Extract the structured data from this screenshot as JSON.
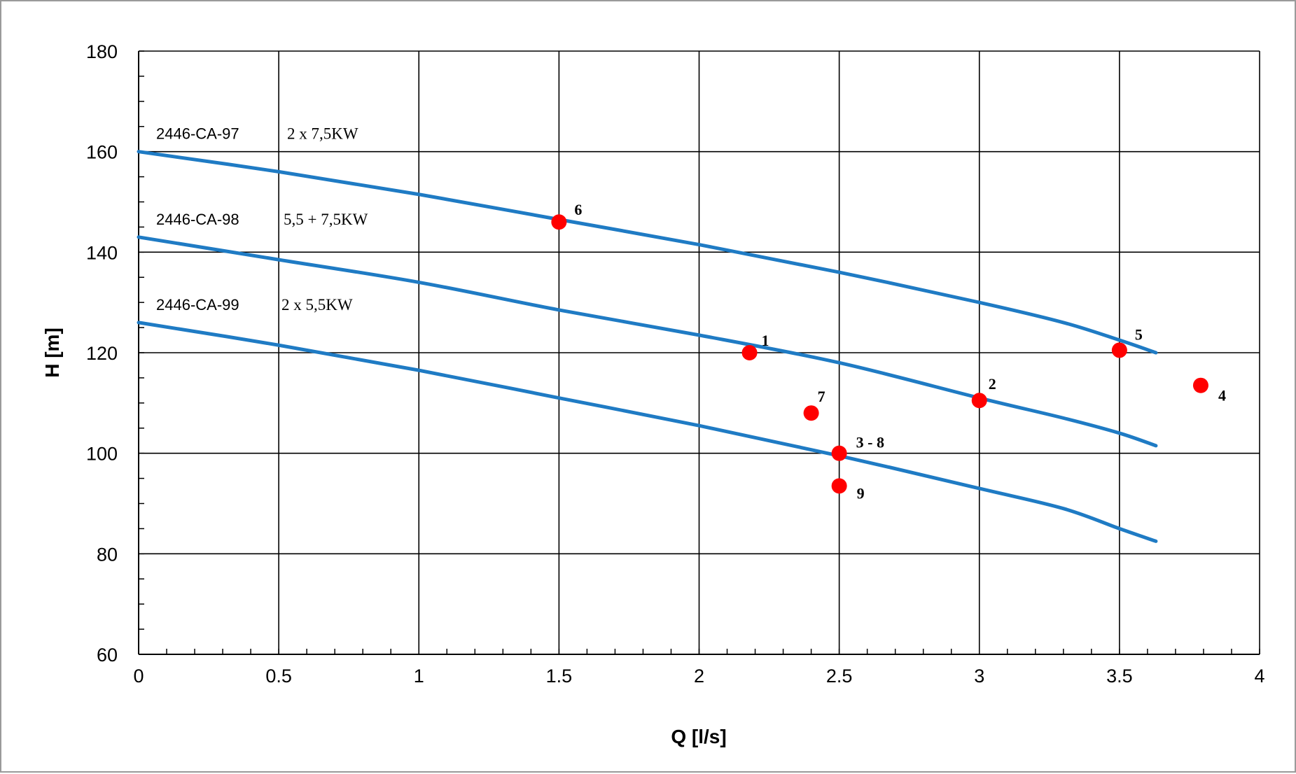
{
  "chart_data": {
    "type": "line",
    "title": "",
    "xlabel": "Q [l/s]",
    "ylabel": "H [m]",
    "xlim": [
      0,
      4
    ],
    "ylim": [
      60,
      180
    ],
    "x_ticks": [
      0,
      0.5,
      1,
      1.5,
      2,
      2.5,
      3,
      3.5,
      4
    ],
    "x_tick_labels": [
      "0",
      "0.5",
      "1",
      "1.5",
      "2",
      "2.5",
      "3",
      "3.5",
      "4"
    ],
    "y_ticks": [
      60,
      80,
      100,
      120,
      140,
      160,
      180
    ],
    "y_tick_labels": [
      "60",
      "80",
      "100",
      "120",
      "140",
      "160",
      "180"
    ],
    "grid": true,
    "line_color": "#1f7bc4",
    "point_color": "#ff0000",
    "series": [
      {
        "name": "2446-CA-97",
        "power": "2 x 7,5KW",
        "x": [
          0,
          0.5,
          1,
          1.5,
          2,
          2.5,
          3,
          3.3,
          3.5,
          3.63
        ],
        "y": [
          160,
          156,
          151.5,
          146.5,
          141.5,
          136,
          130,
          126,
          122.5,
          120
        ]
      },
      {
        "name": "2446-CA-98",
        "power": "5,5 + 7,5KW",
        "x": [
          0,
          0.5,
          1,
          1.5,
          2,
          2.5,
          3,
          3.3,
          3.5,
          3.63
        ],
        "y": [
          143,
          138.5,
          134,
          128.5,
          123.5,
          118,
          111,
          107,
          104,
          101.5
        ]
      },
      {
        "name": "2446-CA-99",
        "power": "2 x 5,5KW",
        "x": [
          0,
          0.5,
          1,
          1.5,
          2,
          2.5,
          3,
          3.3,
          3.5,
          3.63
        ],
        "y": [
          126,
          121.5,
          116.5,
          111,
          105.5,
          99.5,
          93,
          89,
          85,
          82.5
        ]
      }
    ],
    "points": [
      {
        "label": "1",
        "x": 2.18,
        "y": 120
      },
      {
        "label": "2",
        "x": 3.0,
        "y": 110.5
      },
      {
        "label": "3 - 8",
        "x": 2.5,
        "y": 100
      },
      {
        "label": "4",
        "x": 3.79,
        "y": 113.5
      },
      {
        "label": "5",
        "x": 3.5,
        "y": 120.5
      },
      {
        "label": "6",
        "x": 1.5,
        "y": 146
      },
      {
        "label": "7",
        "x": 2.4,
        "y": 108
      },
      {
        "label": "9",
        "x": 2.5,
        "y": 93.5
      }
    ]
  }
}
